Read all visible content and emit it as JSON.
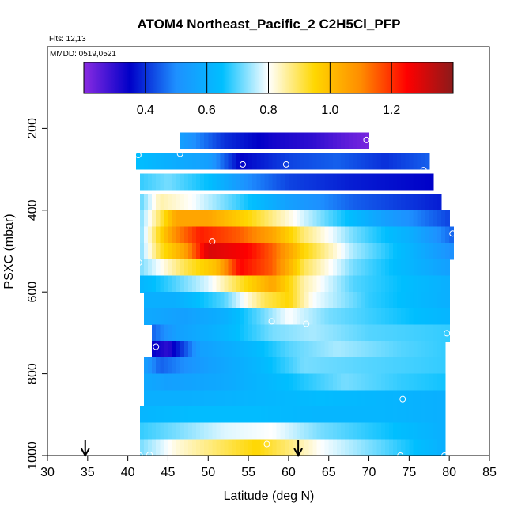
{
  "chart_data": {
    "type": "heatmap",
    "title": "ATOM4 Northeast_Pacific_2 C2H5Cl_PFP",
    "flights_label": "Flts: 12,13",
    "mmdd_label": "MMDD: 0519,0521",
    "xlabel": "Latitude (deg N)",
    "ylabel": "PSXC (mbar)",
    "xlim": [
      30,
      85
    ],
    "ylim": [
      1000,
      0
    ],
    "x_ticks": [
      "30",
      "35",
      "40",
      "45",
      "50",
      "55",
      "60",
      "65",
      "70",
      "75",
      "80",
      "85"
    ],
    "y_ticks": [
      "200",
      "400",
      "600",
      "800",
      "1000"
    ],
    "colorbar": {
      "range": [
        0.2,
        1.4
      ],
      "ticks": [
        "0.4",
        "0.6",
        "0.8",
        "1.0",
        "1.2"
      ],
      "colors": [
        "#8a2be2",
        "#0000c8",
        "#1e90ff",
        "#00bfff",
        "#ffffff",
        "#ffd700",
        "#ff8c00",
        "#ff0000",
        "#8b1a1a"
      ]
    },
    "flight_markers_lat": [
      34.7,
      61.2
    ],
    "rows": [
      {
        "p": 230,
        "lat": [
          46.5,
          70
        ],
        "pts": [
          [
            46.5,
            0.55
          ],
          [
            52,
            0.4
          ],
          [
            58,
            0.33
          ],
          [
            63,
            0.3
          ],
          [
            67,
            0.25
          ],
          [
            70,
            0.22
          ]
        ]
      },
      {
        "p": 280,
        "lat": [
          41,
          77.5
        ],
        "pts": [
          [
            41,
            0.65
          ],
          [
            45,
            0.6
          ],
          [
            50,
            0.55
          ],
          [
            54,
            0.35
          ],
          [
            60,
            0.42
          ],
          [
            66,
            0.45
          ],
          [
            72,
            0.4
          ],
          [
            77.5,
            0.45
          ]
        ]
      },
      {
        "p": 330,
        "lat": [
          41.5,
          78
        ],
        "pts": [
          [
            41.5,
            0.68
          ],
          [
            45,
            0.72
          ],
          [
            50,
            0.65
          ],
          [
            55,
            0.5
          ],
          [
            60,
            0.42
          ],
          [
            68,
            0.38
          ],
          [
            78,
            0.35
          ]
        ]
      },
      {
        "p": 380,
        "lat": [
          41.5,
          79
        ],
        "pts": [
          [
            41.5,
            0.7
          ],
          [
            44,
            0.85
          ],
          [
            48,
            0.8
          ],
          [
            54,
            0.68
          ],
          [
            60,
            0.55
          ],
          [
            68,
            0.45
          ],
          [
            79,
            0.38
          ]
        ]
      },
      {
        "p": 420,
        "lat": [
          41.5,
          80
        ],
        "pts": [
          [
            41.5,
            0.72
          ],
          [
            44,
            0.9
          ],
          [
            46,
            1.05
          ],
          [
            50,
            1.05
          ],
          [
            55,
            0.95
          ],
          [
            60,
            0.82
          ],
          [
            65,
            0.7
          ],
          [
            72,
            0.55
          ],
          [
            80,
            0.42
          ]
        ]
      },
      {
        "p": 460,
        "lat": [
          41.5,
          80.5
        ],
        "pts": [
          [
            41.5,
            0.72
          ],
          [
            44,
            0.95
          ],
          [
            46,
            1.1
          ],
          [
            49,
            1.22
          ],
          [
            54,
            1.15
          ],
          [
            58,
            1.05
          ],
          [
            62,
            0.88
          ],
          [
            68,
            0.72
          ],
          [
            75,
            0.6
          ],
          [
            80.5,
            0.45
          ]
        ]
      },
      {
        "p": 500,
        "lat": [
          41.5,
          80.5
        ],
        "pts": [
          [
            41.5,
            0.72
          ],
          [
            44,
            0.92
          ],
          [
            47,
            1.05
          ],
          [
            50,
            1.3
          ],
          [
            55,
            1.25
          ],
          [
            58,
            1.15
          ],
          [
            62,
            0.95
          ],
          [
            68,
            0.75
          ],
          [
            75,
            0.62
          ],
          [
            80.5,
            0.5
          ]
        ]
      },
      {
        "p": 540,
        "lat": [
          41.5,
          80
        ],
        "pts": [
          [
            41.5,
            0.72
          ],
          [
            44,
            0.8
          ],
          [
            47,
            0.9
          ],
          [
            51,
            1.0
          ],
          [
            54,
            1.25
          ],
          [
            58,
            1.15
          ],
          [
            62,
            0.9
          ],
          [
            68,
            0.72
          ],
          [
            75,
            0.62
          ],
          [
            80,
            0.55
          ]
        ]
      },
      {
        "p": 580,
        "lat": [
          41.5,
          80
        ],
        "pts": [
          [
            41.5,
            0.62
          ],
          [
            45,
            0.68
          ],
          [
            50,
            0.78
          ],
          [
            54,
            0.92
          ],
          [
            58,
            1.05
          ],
          [
            62,
            0.85
          ],
          [
            68,
            0.7
          ],
          [
            80,
            0.6
          ]
        ]
      },
      {
        "p": 620,
        "lat": [
          42,
          80
        ],
        "pts": [
          [
            42,
            0.6
          ],
          [
            46,
            0.6
          ],
          [
            52,
            0.7
          ],
          [
            57,
            0.9
          ],
          [
            60,
            0.95
          ],
          [
            63,
            0.8
          ],
          [
            70,
            0.68
          ],
          [
            80,
            0.6
          ]
        ]
      },
      {
        "p": 660,
        "lat": [
          42,
          80
        ],
        "pts": [
          [
            42,
            0.58
          ],
          [
            47,
            0.55
          ],
          [
            52,
            0.6
          ],
          [
            57,
            0.72
          ],
          [
            60,
            0.8
          ],
          [
            65,
            0.72
          ],
          [
            80,
            0.62
          ]
        ]
      },
      {
        "p": 700,
        "lat": [
          43,
          80
        ],
        "pts": [
          [
            43,
            0.45
          ],
          [
            46,
            0.55
          ],
          [
            52,
            0.62
          ],
          [
            58,
            0.72
          ],
          [
            63,
            0.75
          ],
          [
            70,
            0.7
          ],
          [
            80,
            0.68
          ]
        ]
      },
      {
        "p": 740,
        "lat": [
          43,
          79.5
        ],
        "pts": [
          [
            43,
            0.35
          ],
          [
            45,
            0.3
          ],
          [
            49,
            0.55
          ],
          [
            55,
            0.62
          ],
          [
            60,
            0.7
          ],
          [
            66,
            0.75
          ],
          [
            74,
            0.7
          ],
          [
            79.5,
            0.68
          ]
        ]
      },
      {
        "p": 780,
        "lat": [
          42,
          79.5
        ],
        "pts": [
          [
            42,
            0.55
          ],
          [
            44,
            0.45
          ],
          [
            50,
            0.55
          ],
          [
            56,
            0.62
          ],
          [
            62,
            0.72
          ],
          [
            70,
            0.7
          ],
          [
            79.5,
            0.68
          ]
        ]
      },
      {
        "p": 820,
        "lat": [
          42,
          79.5
        ],
        "pts": [
          [
            42,
            0.58
          ],
          [
            45,
            0.55
          ],
          [
            52,
            0.58
          ],
          [
            60,
            0.65
          ],
          [
            67,
            0.72
          ],
          [
            74,
            0.68
          ],
          [
            79.5,
            0.66
          ]
        ]
      },
      {
        "p": 860,
        "lat": [
          42,
          79.5
        ],
        "pts": [
          [
            42,
            0.6
          ],
          [
            48,
            0.6
          ],
          [
            56,
            0.62
          ],
          [
            64,
            0.64
          ],
          [
            72,
            0.62
          ],
          [
            79.5,
            0.6
          ]
        ]
      },
      {
        "p": 900,
        "lat": [
          41.5,
          79.5
        ],
        "pts": [
          [
            41.5,
            0.62
          ],
          [
            48,
            0.64
          ],
          [
            56,
            0.64
          ],
          [
            64,
            0.62
          ],
          [
            72,
            0.62
          ],
          [
            79.5,
            0.6
          ]
        ]
      },
      {
        "p": 940,
        "lat": [
          41.5,
          79.5
        ],
        "pts": [
          [
            41.5,
            0.68
          ],
          [
            46,
            0.72
          ],
          [
            52,
            0.78
          ],
          [
            58,
            0.8
          ],
          [
            64,
            0.72
          ],
          [
            72,
            0.66
          ],
          [
            79.5,
            0.6
          ]
        ]
      },
      {
        "p": 980,
        "lat": [
          41.5,
          79.5
        ],
        "pts": [
          [
            41.5,
            0.72
          ],
          [
            46,
            0.82
          ],
          [
            52,
            0.9
          ],
          [
            56,
            0.95
          ],
          [
            60,
            0.88
          ],
          [
            64,
            0.8
          ],
          [
            72,
            0.7
          ],
          [
            79.5,
            0.6
          ]
        ]
      }
    ],
    "sample_points": [
      [
        41.3,
        265
      ],
      [
        46.5,
        262
      ],
      [
        54.3,
        288
      ],
      [
        59.7,
        288
      ],
      [
        69.7,
        228
      ],
      [
        76.8,
        302
      ],
      [
        80.4,
        457
      ],
      [
        41.4,
        528
      ],
      [
        50.5,
        476
      ],
      [
        57.9,
        672
      ],
      [
        62.2,
        678
      ],
      [
        43.5,
        734
      ],
      [
        79.7,
        701
      ],
      [
        74.2,
        862
      ],
      [
        41.5,
        1000
      ],
      [
        42.7,
        998
      ],
      [
        57.3,
        972
      ],
      [
        73.9,
        1000
      ],
      [
        79.4,
        1000
      ]
    ]
  }
}
